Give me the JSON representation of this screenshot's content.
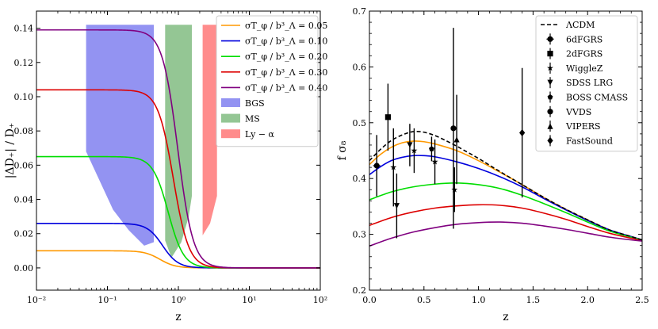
{
  "chart_data": [
    {
      "type": "line",
      "panel": "left",
      "xscale": "log",
      "xlim": [
        0.01,
        100
      ],
      "ylim": [
        -0.013,
        0.15
      ],
      "xlabel": "z",
      "ylabel": "|ΔD₊| / D₊",
      "xtick_labels": [
        "10⁻²",
        "10⁻¹",
        "10⁰",
        "10¹",
        "10²"
      ],
      "ytick_values": [
        0.0,
        0.02,
        0.04,
        0.06,
        0.08,
        0.1,
        0.12,
        0.14
      ],
      "ytick_labels": [
        "0.00",
        "0.02",
        "0.04",
        "0.06",
        "0.08",
        "0.10",
        "0.12",
        "0.14"
      ],
      "legend_position": "top-right",
      "series": [
        {
          "name": "σ_Tφ / b_Λ³ = 0.05",
          "label": "σT_φ / b³_Λ = 0.05",
          "color": "#ff9900",
          "amplitude": 0.01,
          "z_half": 0.55,
          "sharpness": 4.0
        },
        {
          "name": "σ_Tφ / b_Λ³ = 0.10",
          "label": "σT_φ / b³_Λ = 0.10",
          "color": "#0000dd",
          "amplitude": 0.026,
          "z_half": 0.6,
          "sharpness": 4.0
        },
        {
          "name": "σ_Tφ / b_Λ³ = 0.20",
          "label": "σT_φ / b³_Λ = 0.20",
          "color": "#00dd00",
          "amplitude": 0.065,
          "z_half": 0.72,
          "sharpness": 4.0
        },
        {
          "name": "σ_Tφ / b_Λ³ = 0.30",
          "label": "σT_φ / b³_Λ = 0.30",
          "color": "#dd0000",
          "amplitude": 0.104,
          "z_half": 0.85,
          "sharpness": 4.0
        },
        {
          "name": "σ_Tφ / b_Λ³ = 0.40",
          "label": "σT_φ / b³_Λ = 0.40",
          "color": "#800080",
          "amplitude": 0.139,
          "z_half": 0.98,
          "sharpness": 4.0
        }
      ],
      "bands": [
        {
          "name": "BGS",
          "color": "#8080f0",
          "opacity": 0.85,
          "outline": [
            [
              0.05,
              0.142
            ],
            [
              0.45,
              0.142
            ],
            [
              0.45,
              0.015
            ],
            [
              0.33,
              0.013
            ],
            [
              0.2,
              0.022
            ],
            [
              0.12,
              0.034
            ],
            [
              0.05,
              0.068
            ]
          ]
        },
        {
          "name": "MS",
          "color": "#88c088",
          "opacity": 0.9,
          "outline": [
            [
              0.65,
              0.142
            ],
            [
              1.55,
              0.142
            ],
            [
              1.55,
              0.042
            ],
            [
              1.4,
              0.03
            ],
            [
              1.1,
              0.015
            ],
            [
              0.8,
              0.006
            ],
            [
              0.65,
              0.016
            ]
          ]
        },
        {
          "name": "Ly − α",
          "color": "#ff8080",
          "opacity": 0.9,
          "outline": [
            [
              2.2,
              0.142
            ],
            [
              3.5,
              0.142
            ],
            [
              3.5,
              0.042
            ],
            [
              2.8,
              0.026
            ],
            [
              2.2,
              0.019
            ]
          ]
        }
      ]
    },
    {
      "type": "scatter+line",
      "panel": "right",
      "xlim": [
        0.0,
        2.5
      ],
      "ylim": [
        0.2,
        0.7
      ],
      "xlabel": "z",
      "ylabel": "f σ₈",
      "xtick_values": [
        0.0,
        0.5,
        1.0,
        1.5,
        2.0,
        2.5
      ],
      "xtick_labels": [
        "0.0",
        "0.5",
        "1.0",
        "1.5",
        "2.0",
        "2.5"
      ],
      "ytick_values": [
        0.2,
        0.3,
        0.4,
        0.5,
        0.6,
        0.7
      ],
      "ytick_labels": [
        "0.2",
        "0.3",
        "0.4",
        "0.5",
        "0.6",
        "0.7"
      ],
      "legend_position": "top-right",
      "lcdm": {
        "name": "ΛCDM",
        "color": "#000000",
        "x": [
          0.0,
          0.1,
          0.2,
          0.3,
          0.4,
          0.5,
          0.6,
          0.7,
          0.8,
          0.9,
          1.0,
          1.2,
          1.4,
          1.6,
          1.8,
          2.0,
          2.2,
          2.4,
          2.5
        ],
        "y": [
          0.432,
          0.452,
          0.468,
          0.478,
          0.484,
          0.483,
          0.477,
          0.468,
          0.458,
          0.447,
          0.436,
          0.412,
          0.389,
          0.366,
          0.345,
          0.326,
          0.308,
          0.296,
          0.29
        ]
      },
      "model_series": [
        {
          "name": "σ = 0.05",
          "color": "#ff9900",
          "x": [
            0.0,
            0.1,
            0.2,
            0.3,
            0.4,
            0.5,
            0.6,
            0.8,
            1.0,
            1.2,
            1.4,
            1.6,
            1.8,
            2.0,
            2.2,
            2.4,
            2.5
          ],
          "y": [
            0.425,
            0.443,
            0.456,
            0.464,
            0.467,
            0.466,
            0.462,
            0.45,
            0.432,
            0.411,
            0.389,
            0.366,
            0.345,
            0.326,
            0.308,
            0.296,
            0.29
          ]
        },
        {
          "name": "σ = 0.10",
          "color": "#0000dd",
          "x": [
            0.0,
            0.1,
            0.2,
            0.3,
            0.4,
            0.5,
            0.6,
            0.8,
            1.0,
            1.2,
            1.4,
            1.6,
            1.8,
            2.0,
            2.2,
            2.4,
            2.5
          ],
          "y": [
            0.407,
            0.421,
            0.432,
            0.438,
            0.441,
            0.441,
            0.439,
            0.43,
            0.418,
            0.403,
            0.385,
            0.364,
            0.344,
            0.325,
            0.308,
            0.296,
            0.29
          ]
        },
        {
          "name": "σ = 0.20",
          "color": "#00dd00",
          "x": [
            0.0,
            0.2,
            0.4,
            0.6,
            0.8,
            1.0,
            1.2,
            1.4,
            1.6,
            1.8,
            2.0,
            2.2,
            2.4,
            2.5
          ],
          "y": [
            0.362,
            0.376,
            0.385,
            0.39,
            0.392,
            0.389,
            0.382,
            0.37,
            0.355,
            0.339,
            0.322,
            0.306,
            0.295,
            0.29
          ]
        },
        {
          "name": "σ = 0.30",
          "color": "#dd0000",
          "x": [
            0.0,
            0.2,
            0.4,
            0.6,
            0.8,
            1.0,
            1.2,
            1.4,
            1.6,
            1.8,
            2.0,
            2.2,
            2.4,
            2.5
          ],
          "y": [
            0.316,
            0.33,
            0.34,
            0.347,
            0.351,
            0.353,
            0.352,
            0.347,
            0.338,
            0.327,
            0.314,
            0.302,
            0.293,
            0.289
          ]
        },
        {
          "name": "σ = 0.40",
          "color": "#800080",
          "x": [
            0.0,
            0.2,
            0.4,
            0.6,
            0.8,
            1.0,
            1.2,
            1.4,
            1.6,
            1.8,
            2.0,
            2.2,
            2.4,
            2.5
          ],
          "y": [
            0.279,
            0.293,
            0.304,
            0.312,
            0.318,
            0.321,
            0.322,
            0.32,
            0.315,
            0.309,
            0.302,
            0.295,
            0.29,
            0.288
          ]
        }
      ],
      "datasets": [
        {
          "name": "6dFGRS",
          "marker": "circle-plus",
          "points": [
            {
              "x": 0.067,
              "y": 0.423,
              "err": 0.055
            }
          ]
        },
        {
          "name": "2dFGRS",
          "marker": "square",
          "points": [
            {
              "x": 0.17,
              "y": 0.51,
              "err": 0.06
            }
          ]
        },
        {
          "name": "WiggleZ",
          "marker": "star",
          "points": [
            {
              "x": 0.22,
              "y": 0.42,
              "err": 0.07
            },
            {
              "x": 0.41,
              "y": 0.45,
              "err": 0.04
            },
            {
              "x": 0.6,
              "y": 0.43,
              "err": 0.04
            },
            {
              "x": 0.78,
              "y": 0.38,
              "err": 0.04
            }
          ]
        },
        {
          "name": "SDSS LRG",
          "marker": "triangle-down",
          "points": [
            {
              "x": 0.25,
              "y": 0.351,
              "err": 0.058
            },
            {
              "x": 0.37,
              "y": 0.46,
              "err": 0.038
            }
          ]
        },
        {
          "name": "BOSS CMASS",
          "marker": "pentagon",
          "points": [
            {
              "x": 0.57,
              "y": 0.453,
              "err": 0.022
            }
          ]
        },
        {
          "name": "VVDS",
          "marker": "circle",
          "points": [
            {
              "x": 0.77,
              "y": 0.49,
              "err": 0.18
            }
          ]
        },
        {
          "name": "VIPERS",
          "marker": "triangle-up",
          "points": [
            {
              "x": 0.8,
              "y": 0.47,
              "err": 0.08
            }
          ]
        },
        {
          "name": "FastSound",
          "marker": "diamond",
          "points": [
            {
              "x": 1.4,
              "y": 0.482,
              "err": 0.116
            }
          ]
        }
      ]
    }
  ]
}
